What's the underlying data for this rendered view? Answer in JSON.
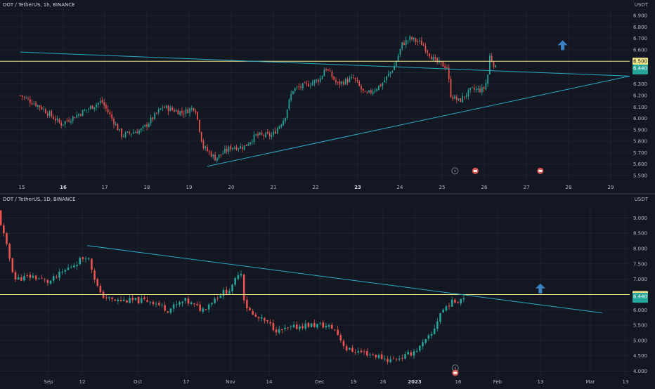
{
  "colors": {
    "bg": "#131722",
    "grid": "#1e222d",
    "up": "#26a69a",
    "down": "#ef5350",
    "axis_text": "#b2b5be",
    "trend": "#2aa8c4",
    "level": "#f0e68c",
    "arrow": "#2962ff"
  },
  "chart_data": [
    {
      "type": "candlestick",
      "symbol_legend": "DOT / TetherUS, 1h, BINANCE",
      "unit": "USDT",
      "x_ticks": [
        "15",
        "16",
        "17",
        "18",
        "19",
        "20",
        "21",
        "22",
        "23",
        "24",
        "25",
        "26",
        "27",
        "28",
        "29"
      ],
      "x_ticks_bold": [
        "16",
        "23"
      ],
      "y_ticks": [
        "6.900",
        "6.800",
        "6.700",
        "6.600",
        "6.500",
        "6.400",
        "6.300",
        "6.200",
        "6.100",
        "6.000",
        "5.900",
        "5.800",
        "5.700",
        "5.600",
        "5.500"
      ],
      "ylim": [
        5.45,
        6.95
      ],
      "level_value": 6.5,
      "level_label": "6.500",
      "last_price": 6.44,
      "last_label": "6.440",
      "last_sub": "",
      "trendlines": [
        {
          "from": [
            14.5,
            6.58
          ],
          "to": [
            29.5,
            6.37
          ]
        },
        {
          "from": [
            19.1,
            5.58
          ],
          "to": [
            29.5,
            6.37
          ]
        }
      ],
      "arrow": {
        "x": 27.85,
        "y": 6.64
      },
      "markers": [
        {
          "x": 25.2,
          "y": 5.54,
          "kind": "flash"
        },
        {
          "x": 25.7,
          "y": 5.54,
          "kind": "flag"
        },
        {
          "x": 27.3,
          "y": 5.54,
          "kind": "flag"
        }
      ],
      "series_points": [
        [
          14.5,
          6.2
        ],
        [
          15.0,
          6.1
        ],
        [
          15.5,
          5.95
        ],
        [
          16.0,
          6.05
        ],
        [
          16.5,
          6.15
        ],
        [
          17.0,
          5.85
        ],
        [
          17.5,
          5.9
        ],
        [
          18.0,
          6.1
        ],
        [
          18.5,
          6.05
        ],
        [
          18.8,
          6.1
        ],
        [
          19.0,
          5.75
        ],
        [
          19.3,
          5.65
        ],
        [
          19.7,
          5.75
        ],
        [
          20.0,
          5.75
        ],
        [
          20.3,
          5.85
        ],
        [
          20.7,
          5.85
        ],
        [
          21.0,
          6.0
        ],
        [
          21.2,
          6.25
        ],
        [
          21.6,
          6.3
        ],
        [
          21.9,
          6.35
        ],
        [
          22.0,
          6.45
        ],
        [
          22.3,
          6.3
        ],
        [
          22.7,
          6.35
        ],
        [
          22.9,
          6.25
        ],
        [
          23.0,
          6.2
        ],
        [
          23.4,
          6.3
        ],
        [
          23.7,
          6.45
        ],
        [
          23.9,
          6.65
        ],
        [
          24.1,
          6.7
        ],
        [
          24.4,
          6.65
        ],
        [
          24.7,
          6.5
        ],
        [
          25.0,
          6.45
        ],
        [
          25.1,
          6.2
        ],
        [
          25.3,
          6.15
        ],
        [
          25.6,
          6.25
        ],
        [
          25.9,
          6.25
        ],
        [
          26.0,
          6.35
        ],
        [
          26.05,
          6.55
        ],
        [
          26.2,
          6.44
        ]
      ],
      "seed": 7,
      "n_candles": 245
    },
    {
      "type": "candlestick",
      "symbol_legend": "DOT / TetherUS, 1D, BINANCE",
      "unit": "USDT",
      "x_ticks": [
        "Sep",
        "12",
        "Oct",
        "17",
        "Nov",
        "14",
        "Dec",
        "19",
        "26",
        "2023",
        "16",
        "Feb",
        "13",
        "Mar",
        "13"
      ],
      "x_ticks_bold": [
        "2023"
      ],
      "y_ticks": [
        "9.000",
        "8.500",
        "8.000",
        "7.500",
        "7.000",
        "6.500",
        "6.000",
        "5.500",
        "5.000",
        "4.500",
        "4.000"
      ],
      "ylim": [
        3.85,
        9.4
      ],
      "level_value": 6.5,
      "level_label": "6.500",
      "last_price": 6.44,
      "last_label": "6.440",
      "last_sub": "",
      "trendlines": [
        {
          "from": [
            1.9,
            8.1
          ],
          "to": [
            14.0,
            5.9
          ]
        }
      ],
      "arrow": {
        "x": 12.55,
        "y": 6.7
      },
      "markers": [
        {
          "x": 10.55,
          "y": 4.1,
          "kind": "flash"
        },
        {
          "x": 10.55,
          "y": 3.85,
          "kind": "flag"
        }
      ],
      "series_points": [
        [
          -0.2,
          9.2
        ],
        [
          0.2,
          7.0
        ],
        [
          0.6,
          7.1
        ],
        [
          1.0,
          6.9
        ],
        [
          1.6,
          7.5
        ],
        [
          1.9,
          7.8
        ],
        [
          2.2,
          6.5
        ],
        [
          2.5,
          6.3
        ],
        [
          2.9,
          6.3
        ],
        [
          3.4,
          6.3
        ],
        [
          3.8,
          6.0
        ],
        [
          4.2,
          6.3
        ],
        [
          4.6,
          6.0
        ],
        [
          5.0,
          6.5
        ],
        [
          5.3,
          6.7
        ],
        [
          5.5,
          7.4
        ],
        [
          5.6,
          6.2
        ],
        [
          5.8,
          5.8
        ],
        [
          6.1,
          5.6
        ],
        [
          6.4,
          5.3
        ],
        [
          6.7,
          5.4
        ],
        [
          7.0,
          5.5
        ],
        [
          7.4,
          5.5
        ],
        [
          7.7,
          5.4
        ],
        [
          8.0,
          4.7
        ],
        [
          8.4,
          4.6
        ],
        [
          8.7,
          4.5
        ],
        [
          9.0,
          4.35
        ],
        [
          9.4,
          4.5
        ],
        [
          9.7,
          4.75
        ],
        [
          10.0,
          5.2
        ],
        [
          10.2,
          5.9
        ],
        [
          10.4,
          6.2
        ],
        [
          10.6,
          6.3
        ],
        [
          10.75,
          6.44
        ]
      ],
      "seed": 11,
      "n_candles": 160
    }
  ]
}
